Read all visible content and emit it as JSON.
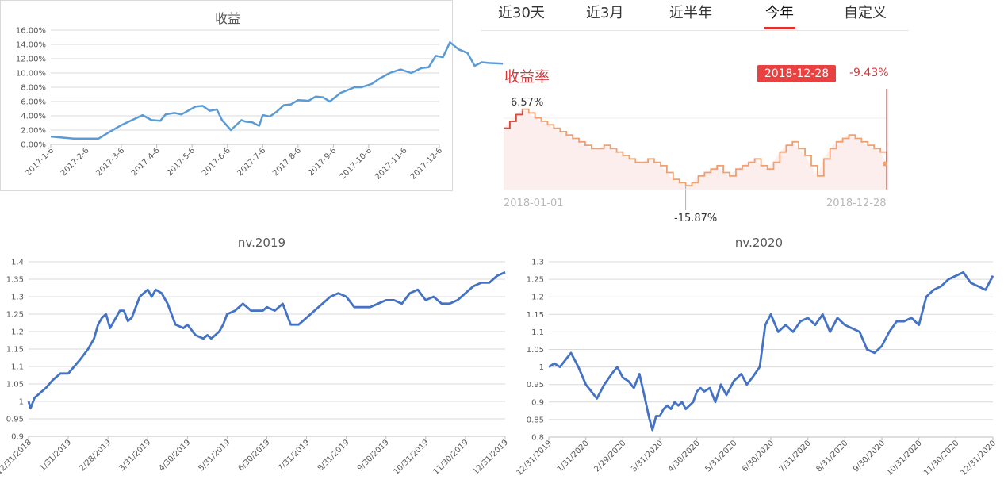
{
  "tabs": [
    "近30天",
    "近3月",
    "近半年",
    "今年",
    "自定义"
  ],
  "active_tab": "今年",
  "accent_color": "#e0312f",
  "chart_data": [
    {
      "id": "c2017",
      "type": "line",
      "title": "收益",
      "color": "#5b9bd5",
      "ylim": [
        0,
        16
      ],
      "y_ticks": [
        "0.00%",
        "2.00%",
        "4.00%",
        "6.00%",
        "8.00%",
        "10.00%",
        "12.00%",
        "14.00%",
        "16.00%"
      ],
      "x_ticks": [
        "2017-1-6",
        "2017-2-6",
        "2017-3-6",
        "2017-4-6",
        "2017-5-6",
        "2017-6-6",
        "2017-7-6",
        "2017-8-6",
        "2017-9-6",
        "2017-10-6",
        "2017-11-6",
        "2017-12-6"
      ],
      "grid": true,
      "series": [
        {
          "x": [
            0,
            0.65,
            1.35,
            1.65,
            2.0,
            2.3,
            2.6,
            2.85,
            3.1,
            3.25,
            3.5,
            3.7,
            4.1,
            4.3,
            4.5,
            4.7,
            4.85,
            5.1,
            5.4,
            5.5,
            5.7,
            5.9,
            6.0,
            6.2,
            6.4,
            6.6,
            6.8,
            7.0,
            7.3,
            7.5,
            7.7,
            7.9,
            8.2,
            8.4,
            8.6,
            8.8,
            9.1,
            9.3,
            9.6,
            9.9,
            10.2,
            10.5,
            10.7,
            10.9,
            11.1,
            11.3,
            11.55,
            11.8,
            12.0,
            12.2,
            12.4,
            12.8
          ],
          "values": [
            1.1,
            0.8,
            0.8,
            1.7,
            2.7,
            3.4,
            4.1,
            3.4,
            3.3,
            4.2,
            4.4,
            4.2,
            5.3,
            5.4,
            4.7,
            4.9,
            3.4,
            2.0,
            3.4,
            3.2,
            3.1,
            2.6,
            4.1,
            3.9,
            4.6,
            5.5,
            5.6,
            6.2,
            6.1,
            6.7,
            6.6,
            6.0,
            7.2,
            7.6,
            8.0,
            8.0,
            8.5,
            9.2,
            10.0,
            10.5,
            10.0,
            10.7,
            10.8,
            12.4,
            12.2,
            14.3,
            13.3,
            12.8,
            11.0,
            11.5,
            11.4,
            11.3
          ]
        }
      ]
    },
    {
      "id": "c2018",
      "type": "area",
      "title": "收益率",
      "current_date": "2018-12-28",
      "current_value": "-9.43%",
      "max_label": "6.57%",
      "min_label": "-15.87%",
      "x_start": "2018-01-01",
      "x_end": "2018-12-28",
      "line_color": "#f0a070",
      "start_color": "#d94a3d",
      "fill_color": "#fdeeee",
      "ylim": [
        -17,
        13
      ],
      "series": [
        {
          "values": [
            1,
            3,
            5,
            6.57,
            5.5,
            4,
            3,
            2,
            1,
            0,
            -1,
            -2,
            -3,
            -4,
            -5,
            -5,
            -4,
            -5,
            -6,
            -7,
            -8,
            -9,
            -9,
            -8,
            -9,
            -10,
            -12,
            -14,
            -15,
            -15.87,
            -15,
            -13,
            -12,
            -11,
            -10,
            -12,
            -13,
            -11,
            -10,
            -9,
            -8,
            -10,
            -11,
            -9,
            -6,
            -4,
            -3,
            -5,
            -7,
            -10,
            -13,
            -8,
            -5,
            -3,
            -2,
            -1,
            -2,
            -3,
            -4,
            -5,
            -6,
            -9.43
          ]
        }
      ]
    },
    {
      "id": "c2019",
      "type": "line",
      "title": "nv.2019",
      "color": "#4472c4",
      "ylim": [
        0.9,
        1.4
      ],
      "y_ticks": [
        "0.9",
        "0.95",
        "1",
        "1.05",
        "1.1",
        "1.15",
        "1.2",
        "1.25",
        "1.3",
        "1.35",
        "1.4"
      ],
      "x_ticks": [
        "12/31/2018",
        "1/31/2019",
        "2/28/2019",
        "3/31/2019",
        "4/30/2019",
        "5/31/2019",
        "6/30/2019",
        "7/31/2019",
        "8/31/2019",
        "9/30/2019",
        "10/31/2019",
        "11/30/2019",
        "12/31/2019"
      ],
      "grid": true,
      "series": [
        {
          "x": [
            0,
            0.05,
            0.15,
            0.25,
            0.35,
            0.45,
            0.6,
            0.7,
            0.8,
            0.9,
            1.0,
            1.3,
            1.5,
            1.65,
            1.75,
            1.85,
            1.95,
            2.05,
            2.2,
            2.3,
            2.4,
            2.5,
            2.6,
            2.8,
            2.9,
            3.0,
            3.1,
            3.2,
            3.35,
            3.5,
            3.6,
            3.7,
            3.9,
            4.0,
            4.2,
            4.4,
            4.5,
            4.6,
            4.8,
            4.9,
            5.0,
            5.2,
            5.4,
            5.6,
            5.8,
            5.9,
            6.0,
            6.2,
            6.3,
            6.4,
            6.6,
            6.8,
            7.0,
            7.2,
            7.4,
            7.6,
            7.8,
            8.0,
            8.2,
            8.4,
            8.6,
            8.8,
            9.0,
            9.2,
            9.4,
            9.6,
            9.8,
            10.0,
            10.2,
            10.4,
            10.6,
            10.8,
            11.0,
            11.2,
            11.4,
            11.6,
            11.8,
            12.0
          ],
          "values": [
            1.0,
            0.98,
            1.01,
            1.02,
            1.03,
            1.04,
            1.06,
            1.07,
            1.08,
            1.08,
            1.08,
            1.12,
            1.15,
            1.18,
            1.22,
            1.24,
            1.25,
            1.21,
            1.24,
            1.26,
            1.26,
            1.23,
            1.24,
            1.3,
            1.31,
            1.32,
            1.3,
            1.32,
            1.31,
            1.28,
            1.25,
            1.22,
            1.21,
            1.22,
            1.19,
            1.18,
            1.19,
            1.18,
            1.2,
            1.22,
            1.25,
            1.26,
            1.28,
            1.26,
            1.26,
            1.26,
            1.27,
            1.26,
            1.27,
            1.28,
            1.22,
            1.22,
            1.24,
            1.26,
            1.28,
            1.3,
            1.31,
            1.3,
            1.27,
            1.27,
            1.27,
            1.28,
            1.29,
            1.29,
            1.28,
            1.31,
            1.32,
            1.29,
            1.3,
            1.28,
            1.28,
            1.29,
            1.31,
            1.33,
            1.34,
            1.34,
            1.36,
            1.37
          ]
        }
      ]
    },
    {
      "id": "c2020",
      "type": "line",
      "title": "nv.2020",
      "color": "#4472c4",
      "ylim": [
        0.8,
        1.3
      ],
      "y_ticks": [
        "0.8",
        "0.85",
        "0.9",
        "0.95",
        "1",
        "1.05",
        "1.1",
        "1.15",
        "1.2",
        "1.25",
        "1.3"
      ],
      "x_ticks": [
        "12/31/2019",
        "1/31/2020",
        "2/29/2020",
        "3/31/2020",
        "4/30/2020",
        "5/31/2020",
        "6/30/2020",
        "7/31/2020",
        "8/31/2020",
        "9/30/2020",
        "10/31/2020",
        "11/30/2020",
        "12/31/2020"
      ],
      "grid": true,
      "series": [
        {
          "x": [
            0,
            0.15,
            0.3,
            0.45,
            0.6,
            0.8,
            1.0,
            1.3,
            1.5,
            1.7,
            1.85,
            2.0,
            2.15,
            2.3,
            2.45,
            2.6,
            2.7,
            2.8,
            2.9,
            3.0,
            3.1,
            3.2,
            3.3,
            3.4,
            3.5,
            3.6,
            3.7,
            3.8,
            3.9,
            4.0,
            4.1,
            4.2,
            4.35,
            4.5,
            4.65,
            4.8,
            4.9,
            5.0,
            5.1,
            5.2,
            5.35,
            5.5,
            5.7,
            5.85,
            6.0,
            6.2,
            6.4,
            6.6,
            6.8,
            7.0,
            7.2,
            7.4,
            7.6,
            7.8,
            8.0,
            8.2,
            8.4,
            8.6,
            8.8,
            9.0,
            9.2,
            9.4,
            9.6,
            9.8,
            10.0,
            10.2,
            10.4,
            10.6,
            10.8,
            11.0,
            11.2,
            11.4,
            11.6,
            11.8,
            12.0
          ],
          "values": [
            1.0,
            1.01,
            1.0,
            1.02,
            1.04,
            1.0,
            0.95,
            0.91,
            0.95,
            0.98,
            1.0,
            0.97,
            0.96,
            0.94,
            0.98,
            0.91,
            0.86,
            0.82,
            0.86,
            0.86,
            0.88,
            0.89,
            0.88,
            0.9,
            0.89,
            0.9,
            0.88,
            0.89,
            0.9,
            0.93,
            0.94,
            0.93,
            0.94,
            0.9,
            0.95,
            0.92,
            0.94,
            0.96,
            0.97,
            0.98,
            0.95,
            0.97,
            1.0,
            1.12,
            1.15,
            1.1,
            1.12,
            1.1,
            1.13,
            1.14,
            1.12,
            1.15,
            1.1,
            1.14,
            1.12,
            1.11,
            1.1,
            1.05,
            1.04,
            1.06,
            1.1,
            1.13,
            1.13,
            1.14,
            1.12,
            1.2,
            1.22,
            1.23,
            1.25,
            1.26,
            1.27,
            1.24,
            1.23,
            1.22,
            1.26
          ]
        }
      ]
    }
  ]
}
